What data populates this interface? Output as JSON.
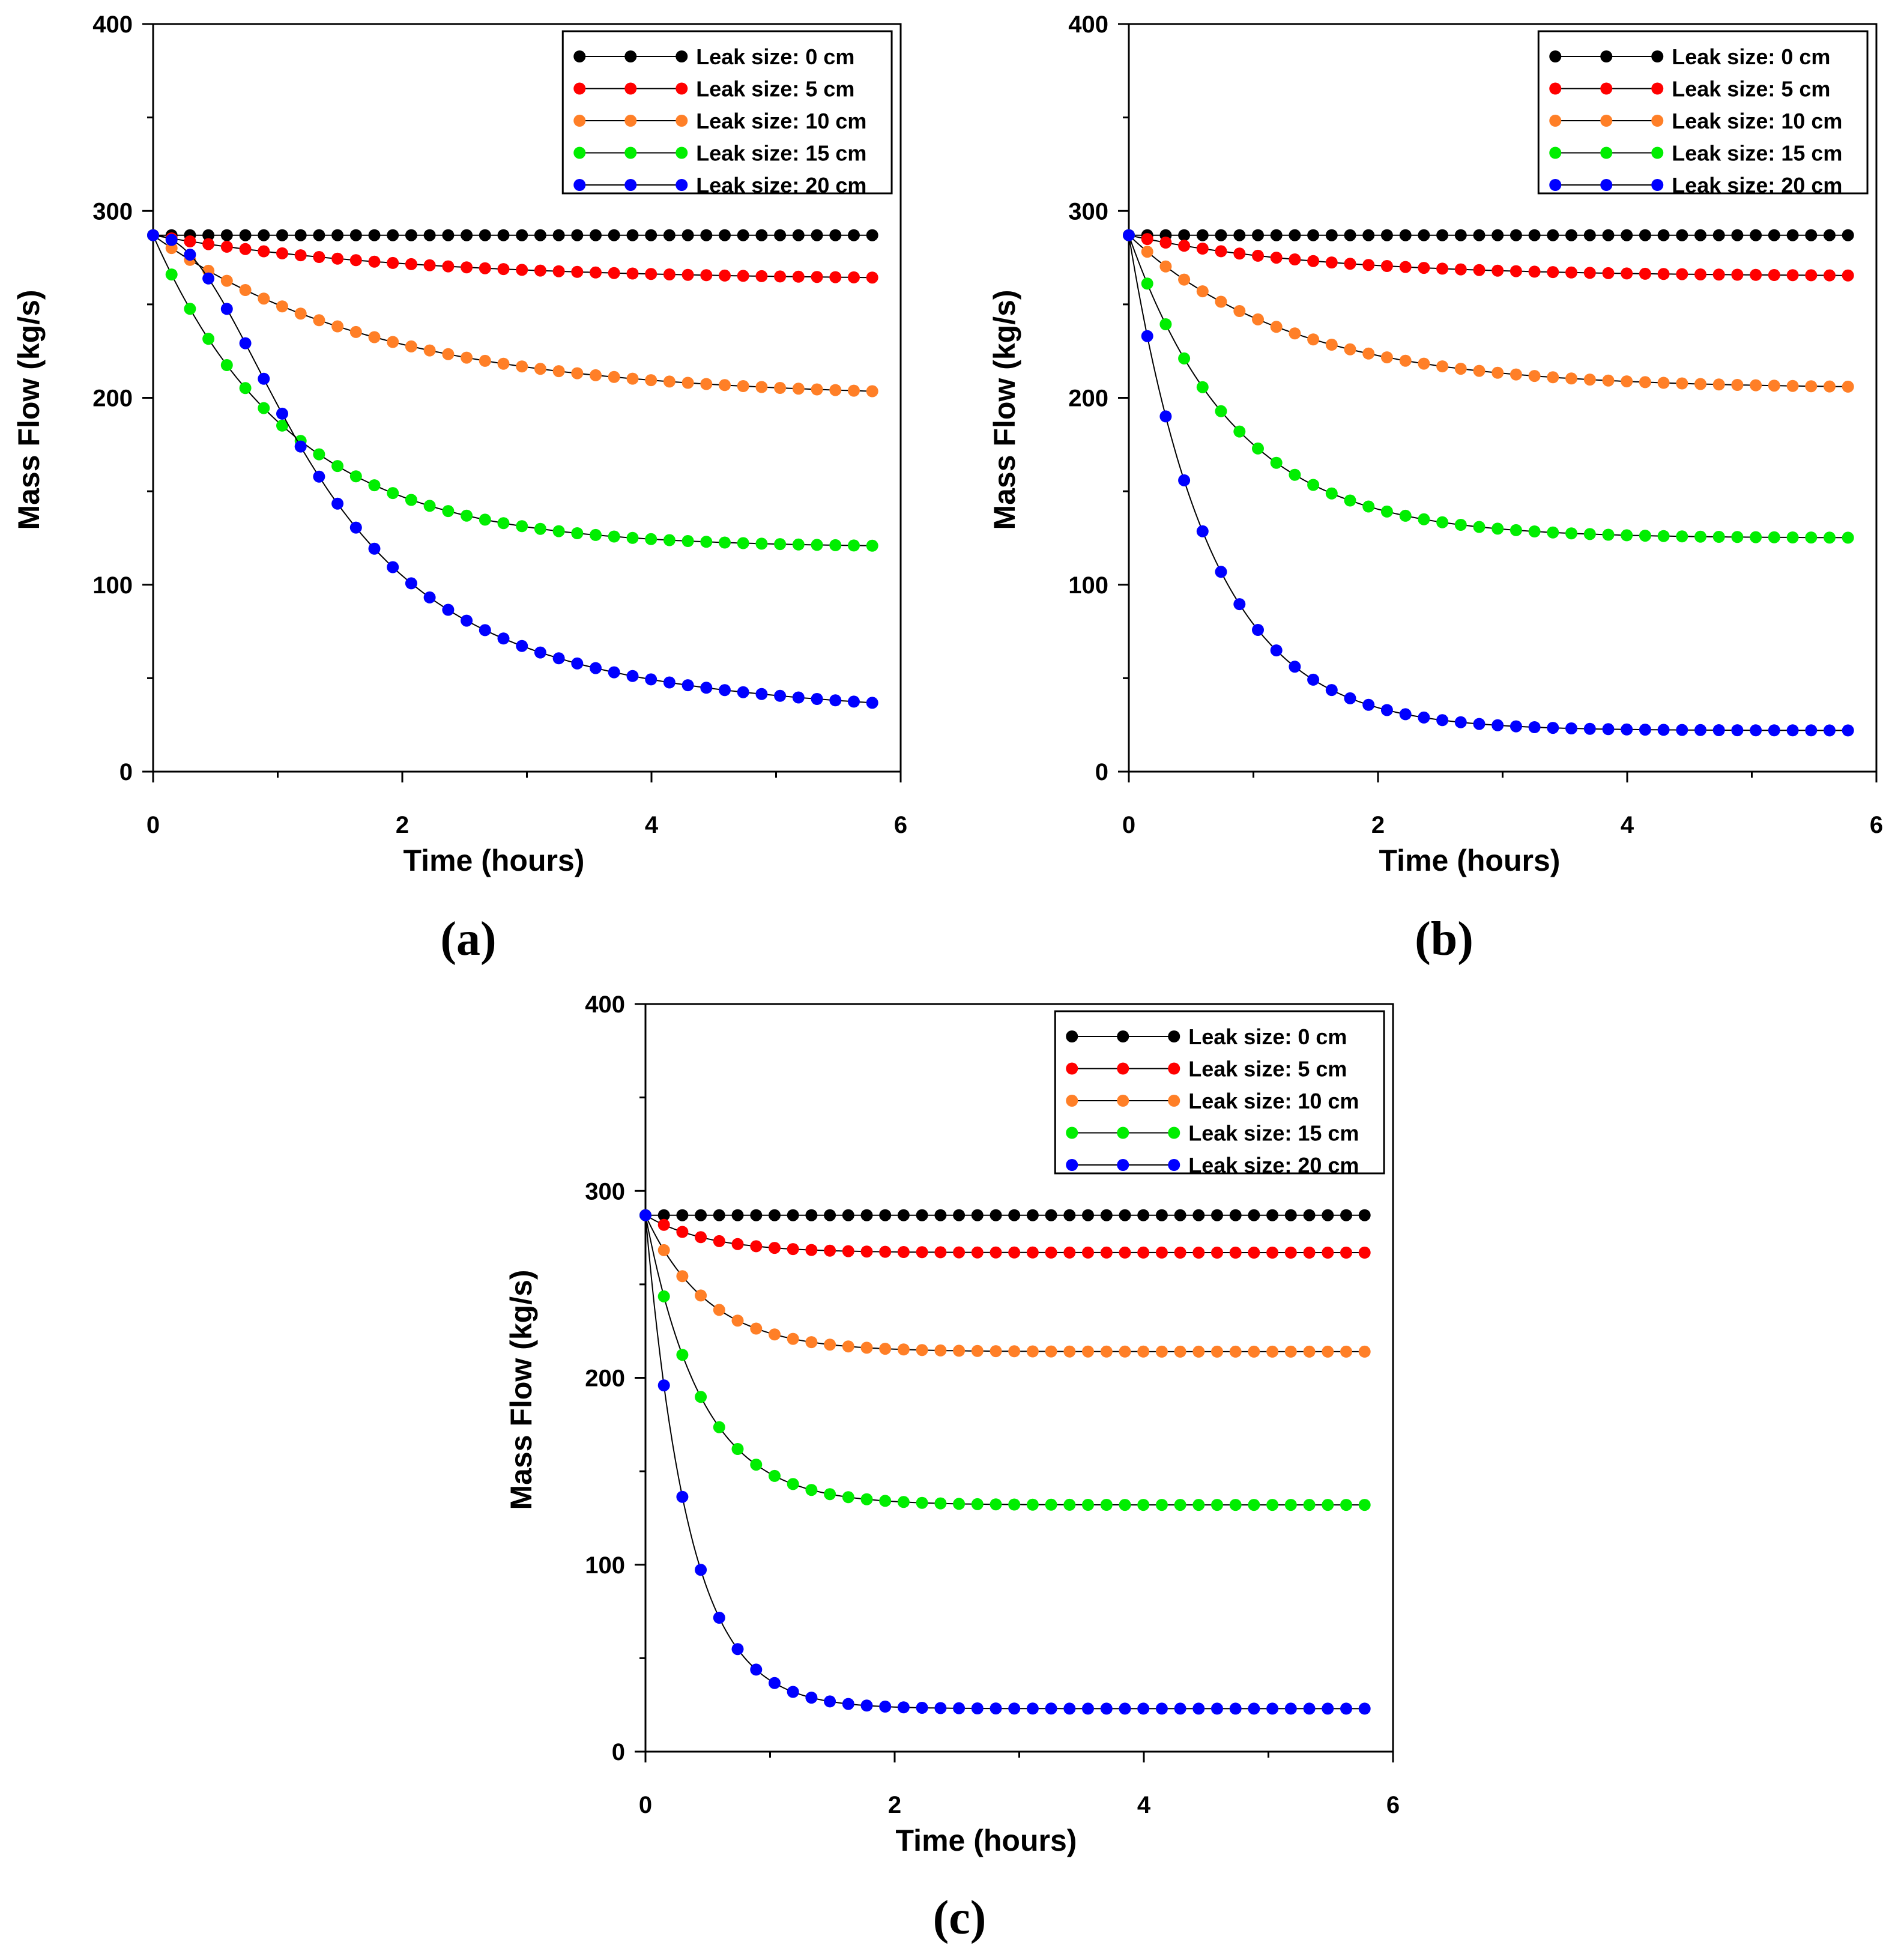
{
  "chart_data": [
    {
      "type": "line",
      "panel_label": "(a)",
      "xlabel": "Time (hours)",
      "ylabel": "Mass Flow (kg/s)",
      "xlim": [
        0,
        6
      ],
      "ylim": [
        0,
        400
      ],
      "xticks": [
        "0",
        "2",
        "4",
        "6"
      ],
      "yticks": [
        "0",
        "100",
        "200",
        "300",
        "400"
      ],
      "legend_position": "top-right",
      "series": [
        {
          "name": "Leak size: 0 cm",
          "color": "#000000",
          "start": 287,
          "end": 287,
          "tau": 1,
          "shape": "exp"
        },
        {
          "name": "Leak size: 5 cm",
          "color": "#ff0000",
          "start": 287,
          "end": 263,
          "tau": 2.0,
          "shape": "exp"
        },
        {
          "name": "Leak size: 10 cm",
          "color": "#ff7f27",
          "start": 287,
          "end": 200,
          "tau": 1.8,
          "shape": "exp"
        },
        {
          "name": "Leak size: 15 cm",
          "color": "#00ee00",
          "start": 287,
          "end": 120,
          "tau": 1.1,
          "shape": "exp"
        },
        {
          "name": "Leak size: 20 cm",
          "color": "#0000ff",
          "start": 287,
          "end": 25,
          "tau": 1.35,
          "shape": "sigmoid"
        }
      ]
    },
    {
      "type": "line",
      "panel_label": "(b)",
      "xlabel": "Time (hours)",
      "ylabel": "Mass Flow (kg/s)",
      "xlim": [
        0,
        6
      ],
      "ylim": [
        0,
        400
      ],
      "xticks": [
        "0",
        "2",
        "4",
        "6"
      ],
      "yticks": [
        "0",
        "100",
        "200",
        "300",
        "400"
      ],
      "legend_position": "top-right",
      "series": [
        {
          "name": "Leak size: 0 cm",
          "color": "#000000",
          "start": 287,
          "end": 287,
          "tau": 1,
          "shape": "exp"
        },
        {
          "name": "Leak size: 5 cm",
          "color": "#ff0000",
          "start": 287,
          "end": 265,
          "tau": 1.5,
          "shape": "exp"
        },
        {
          "name": "Leak size: 10 cm",
          "color": "#ff7f27",
          "start": 287,
          "end": 205,
          "tau": 1.3,
          "shape": "exp"
        },
        {
          "name": "Leak size: 15 cm",
          "color": "#00ee00",
          "start": 287,
          "end": 125,
          "tau": 0.85,
          "shape": "exp"
        },
        {
          "name": "Leak size: 20 cm",
          "color": "#0000ff",
          "start": 287,
          "end": 22,
          "tau": 0.65,
          "shape": "exp"
        }
      ]
    },
    {
      "type": "line",
      "panel_label": "(c)",
      "xlabel": "Time (hours)",
      "ylabel": "Mass Flow (kg/s)",
      "xlim": [
        0,
        6
      ],
      "ylim": [
        0,
        400
      ],
      "xticks": [
        "0",
        "2",
        "4",
        "6"
      ],
      "yticks": [
        "0",
        "100",
        "200",
        "300",
        "400"
      ],
      "legend_position": "top-right",
      "series": [
        {
          "name": "Leak size: 0 cm",
          "color": "#000000",
          "start": 287,
          "end": 287,
          "tau": 1,
          "shape": "exp"
        },
        {
          "name": "Leak size: 5 cm",
          "color": "#ff0000",
          "start": 287,
          "end": 267,
          "tau": 0.5,
          "shape": "exp"
        },
        {
          "name": "Leak size: 10 cm",
          "color": "#ff7f27",
          "start": 287,
          "end": 214,
          "tau": 0.5,
          "shape": "exp"
        },
        {
          "name": "Leak size: 15 cm",
          "color": "#00ee00",
          "start": 287,
          "end": 132,
          "tau": 0.45,
          "shape": "exp"
        },
        {
          "name": "Leak size: 20 cm",
          "color": "#0000ff",
          "start": 287,
          "end": 23,
          "tau": 0.35,
          "shape": "exp"
        }
      ]
    }
  ]
}
